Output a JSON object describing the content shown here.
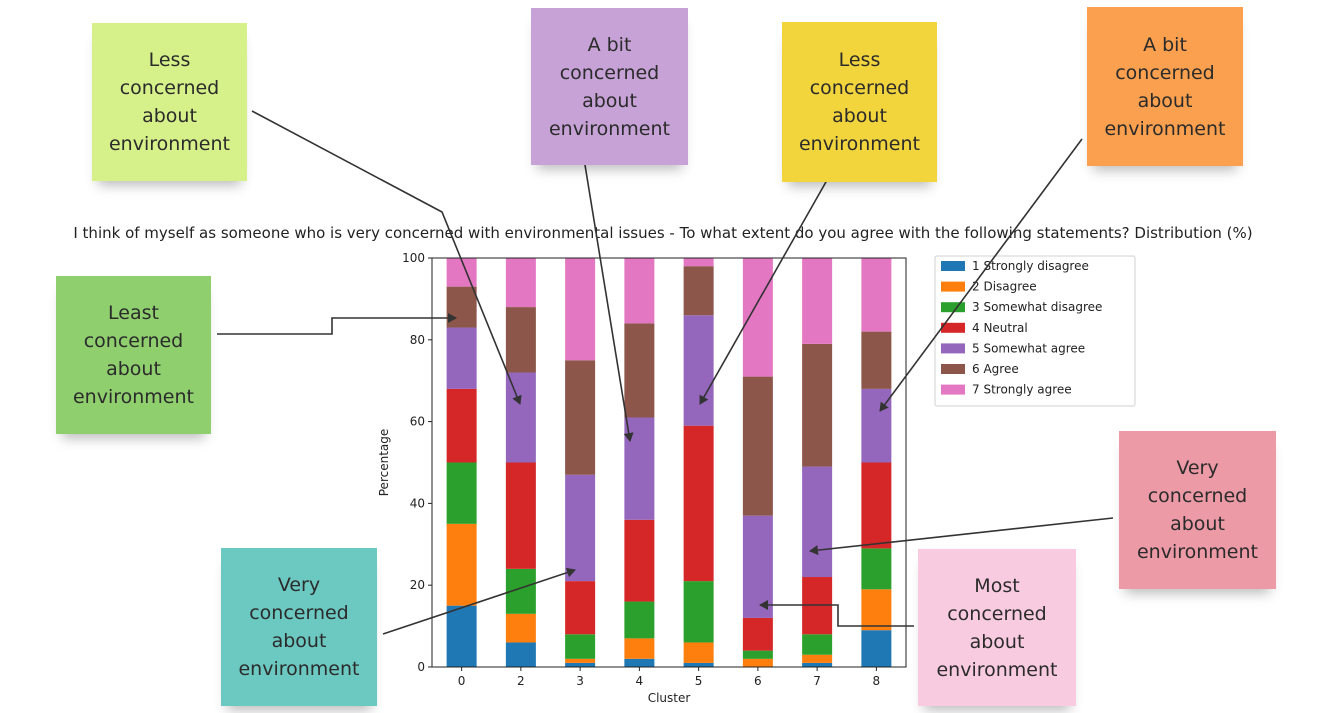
{
  "chart_data": {
    "type": "bar",
    "stacked": true,
    "title": "I think of myself as someone who is very concerned with environmental issues - To what extent do you agree with the following statements? Distribution (%)",
    "xlabel": "Cluster",
    "ylabel": "Percentage",
    "ylim": [
      0,
      100
    ],
    "yticks": [
      0,
      20,
      40,
      60,
      80,
      100
    ],
    "categories": [
      "0",
      "2",
      "3",
      "4",
      "5",
      "6",
      "7",
      "8"
    ],
    "legend_position": "upper-right",
    "series": [
      {
        "name": "1 Strongly disagree",
        "color": "#1f77b4",
        "values": [
          15,
          6,
          1,
          2,
          1,
          0,
          1,
          9
        ]
      },
      {
        "name": "2 Disagree",
        "color": "#ff7f0e",
        "values": [
          20,
          7,
          1,
          5,
          5,
          2,
          2,
          10
        ]
      },
      {
        "name": "3 Somewhat disagree",
        "color": "#2ca02c",
        "values": [
          15,
          11,
          6,
          9,
          15,
          2,
          5,
          10
        ]
      },
      {
        "name": "4 Neutral",
        "color": "#d62728",
        "values": [
          18,
          26,
          13,
          20,
          38,
          8,
          14,
          21
        ]
      },
      {
        "name": "5 Somewhat agree",
        "color": "#9467bd",
        "values": [
          15,
          22,
          26,
          25,
          27,
          25,
          27,
          18
        ]
      },
      {
        "name": "6 Agree",
        "color": "#8c564b",
        "values": [
          10,
          16,
          28,
          23,
          12,
          34,
          30,
          14
        ]
      },
      {
        "name": "7 Strongly agree",
        "color": "#e377c2",
        "values": [
          7,
          12,
          25,
          16,
          2,
          29,
          21,
          18
        ]
      }
    ]
  },
  "notes": [
    {
      "text": "Less\nconcerned\nabout\nenvironment",
      "color": "#d6f08a"
    },
    {
      "text": "A bit\nconcerned\nabout\nenvironment",
      "color": "#c6a2d6"
    },
    {
      "text": "Less\nconcerned\nabout\nenvironment",
      "color": "#f2d43c"
    },
    {
      "text": "A bit\nconcerned\nabout\nenvironment",
      "color": "#fba04e"
    },
    {
      "text": "Least\nconcerned\nabout\nenvironment",
      "color": "#8fcf6e"
    },
    {
      "text": "Very\nconcerned\nabout\nenvironment",
      "color": "#ec9aa6"
    },
    {
      "text": "Very\nconcerned\nabout\nenvironment",
      "color": "#6cc9c1"
    },
    {
      "text": "Most\nconcerned\nabout\nenvironment",
      "color": "#f9cbe1"
    }
  ]
}
